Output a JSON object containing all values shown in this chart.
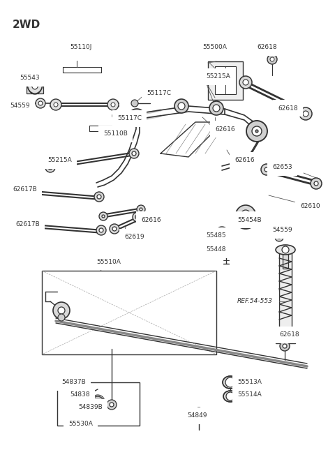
{
  "title": "2WD",
  "bg_color": "#ffffff",
  "lc": "#333333",
  "lc2": "#555555",
  "title_fontsize": 11,
  "lfs": 6.5,
  "fig_w": 4.8,
  "fig_h": 6.55,
  "labels": [
    [
      "55110J",
      100,
      68,
      "left"
    ],
    [
      "55543",
      28,
      112,
      "left"
    ],
    [
      "54559",
      14,
      152,
      "left"
    ],
    [
      "55117C",
      210,
      133,
      "left"
    ],
    [
      "55117C",
      168,
      170,
      "left"
    ],
    [
      "55110B",
      148,
      192,
      "left"
    ],
    [
      "55500A",
      290,
      68,
      "left"
    ],
    [
      "62618",
      368,
      68,
      "left"
    ],
    [
      "62618",
      398,
      155,
      "left"
    ],
    [
      "55215A",
      295,
      110,
      "left"
    ],
    [
      "62616",
      308,
      185,
      "left"
    ],
    [
      "62616",
      336,
      230,
      "left"
    ],
    [
      "62653",
      390,
      240,
      "left"
    ],
    [
      "55215A",
      68,
      230,
      "left"
    ],
    [
      "62617B",
      18,
      272,
      "left"
    ],
    [
      "62616",
      202,
      315,
      "left"
    ],
    [
      "62617B",
      22,
      322,
      "left"
    ],
    [
      "62619",
      178,
      340,
      "left"
    ],
    [
      "55510A",
      138,
      375,
      "left"
    ],
    [
      "62610",
      430,
      295,
      "left"
    ],
    [
      "55454B",
      340,
      315,
      "left"
    ],
    [
      "55485",
      295,
      338,
      "left"
    ],
    [
      "55448",
      295,
      358,
      "left"
    ],
    [
      "54559",
      390,
      330,
      "left"
    ],
    [
      "REF.54-553",
      340,
      432,
      "left"
    ],
    [
      "62618",
      400,
      480,
      "left"
    ],
    [
      "55513A",
      340,
      548,
      "left"
    ],
    [
      "55514A",
      340,
      566,
      "left"
    ],
    [
      "54837B",
      88,
      548,
      "left"
    ],
    [
      "54838",
      100,
      566,
      "left"
    ],
    [
      "54839B",
      112,
      584,
      "left"
    ],
    [
      "55530A",
      98,
      608,
      "left"
    ],
    [
      "54849",
      268,
      596,
      "left"
    ]
  ]
}
